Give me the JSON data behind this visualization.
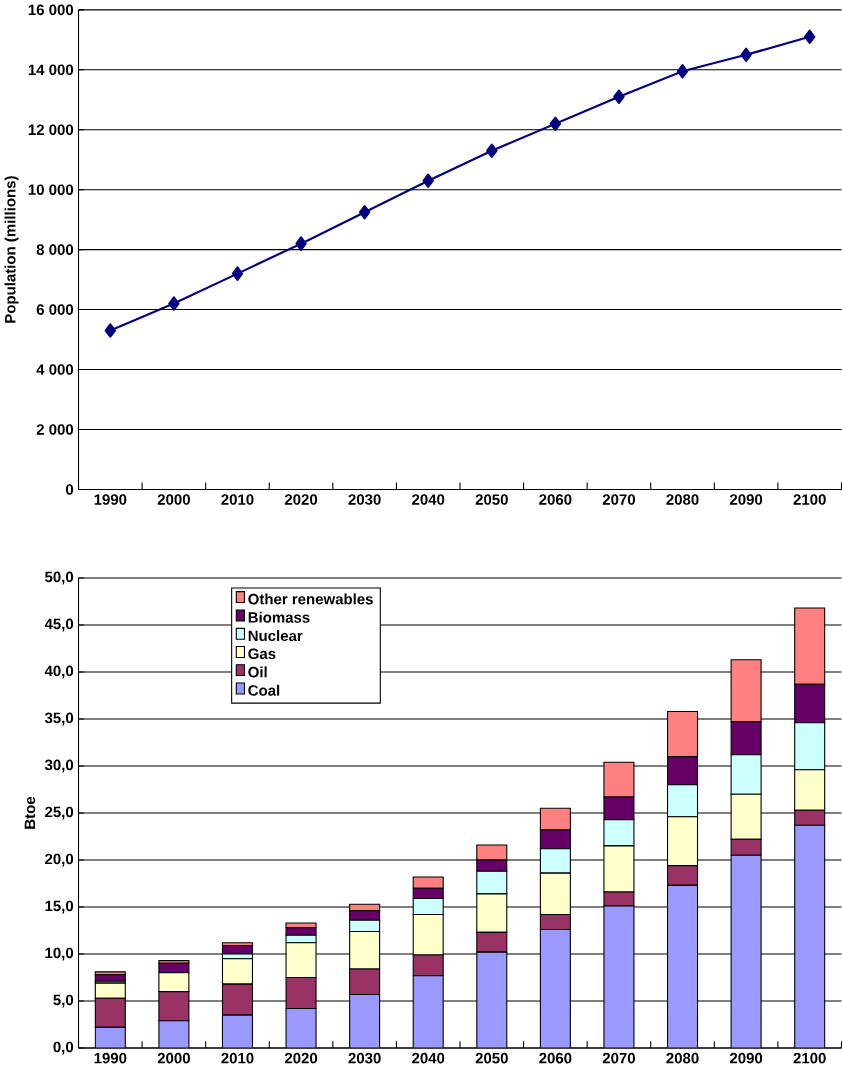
{
  "chart_data": [
    {
      "type": "line",
      "ylabel": "Population (millions)",
      "categories": [
        "1990",
        "2000",
        "2010",
        "2020",
        "2030",
        "2040",
        "2050",
        "2060",
        "2070",
        "2080",
        "2090",
        "2100"
      ],
      "series": [
        {
          "color": "#000080",
          "values": [
            5300,
            6200,
            7200,
            8200,
            9250,
            10300,
            11300,
            12200,
            13100,
            13950,
            14500,
            15100
          ]
        }
      ],
      "ylim": [
        0,
        16000
      ],
      "yticks": [
        0,
        {
          "value": 2000,
          "label": "2 000"
        },
        {
          "value": 4000,
          "label": "4 000"
        },
        {
          "value": 6000,
          "label": "6 000"
        },
        {
          "value": 8000,
          "label": "8 000"
        },
        {
          "value": 10000,
          "label": "10 000"
        },
        {
          "value": 12000,
          "label": "12 000"
        },
        {
          "value": 14000,
          "label": "14 000"
        },
        {
          "value": 16000,
          "label": "16 000"
        }
      ],
      "grid": "y",
      "marker": "diamond",
      "line_style": "solid"
    },
    {
      "type": "bar",
      "stacked": true,
      "ylabel": "Btoe",
      "categories": [
        "1990",
        "2000",
        "2010",
        "2020",
        "2030",
        "2040",
        "2050",
        "2060",
        "2070",
        "2080",
        "2090",
        "2100"
      ],
      "series": [
        {
          "name": "Coal",
          "color": "#9999ff",
          "values": [
            2.2,
            2.9,
            3.5,
            4.2,
            5.7,
            7.7,
            10.2,
            12.6,
            15.1,
            17.3,
            20.5,
            23.7
          ]
        },
        {
          "name": "Oil",
          "color": "#993366",
          "values": [
            3.1,
            3.1,
            3.3,
            3.3,
            2.7,
            2.2,
            2.1,
            1.6,
            1.5,
            2.1,
            1.7,
            1.6
          ]
        },
        {
          "name": "Gas",
          "color": "#ffffcc",
          "values": [
            1.6,
            2.0,
            2.7,
            3.7,
            4.0,
            4.3,
            4.1,
            4.4,
            4.9,
            5.2,
            4.8,
            4.3
          ]
        },
        {
          "name": "Nuclear",
          "color": "#ccffff",
          "values": [
            0.2,
            null,
            0.5,
            0.8,
            1.2,
            1.7,
            2.4,
            2.6,
            2.8,
            3.4,
            4.2,
            5.0
          ]
        },
        {
          "name": "Biomass",
          "color": "#660066",
          "values": [
            0.7,
            1.0,
            0.9,
            0.8,
            1.0,
            1.1,
            1.2,
            2.0,
            2.4,
            3.0,
            3.5,
            4.1
          ]
        },
        {
          "name": "Other renewables",
          "color": "#ff8080",
          "values": [
            0.3,
            0.3,
            0.3,
            0.5,
            0.7,
            1.2,
            1.6,
            2.3,
            3.7,
            4.8,
            6.6,
            8.1
          ]
        }
      ],
      "ylim": [
        0,
        50
      ],
      "yticks": [
        {
          "value": 0,
          "label": "0,0"
        },
        {
          "value": 5,
          "label": "5,0"
        },
        {
          "value": 10,
          "label": "10,0"
        },
        {
          "value": 15,
          "label": "15,0"
        },
        {
          "value": 20,
          "label": "20,0"
        },
        {
          "value": 25,
          "label": "25,0"
        },
        {
          "value": 30,
          "label": "30,0"
        },
        {
          "value": 35,
          "label": "35,0"
        },
        {
          "value": 40,
          "label": "40,0"
        },
        {
          "value": 45,
          "label": "45,0"
        },
        {
          "value": 50,
          "label": "50,0"
        }
      ],
      "grid": "y",
      "legend": "top left"
    }
  ]
}
